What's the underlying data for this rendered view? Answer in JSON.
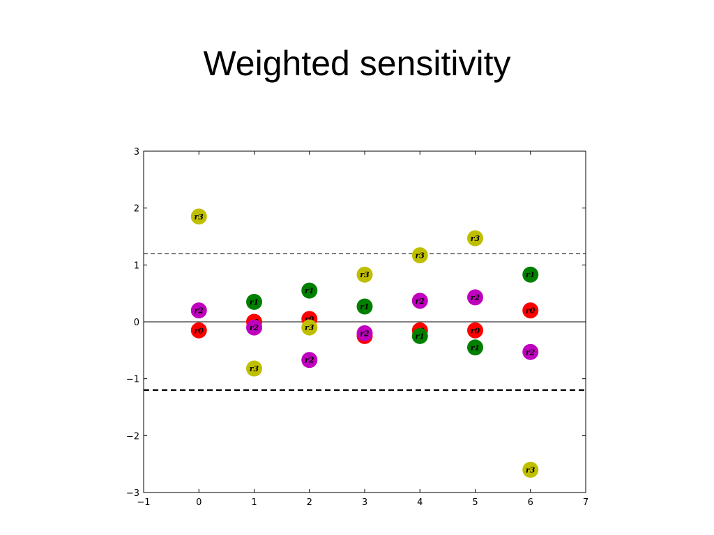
{
  "slide": {
    "title": "Weighted sensitivity"
  },
  "colors": {
    "r0": "#ff0000",
    "r1": "#008000",
    "r2": "#bf00bf",
    "r3": "#bfbf00"
  },
  "chart_data": {
    "type": "scatter",
    "title": "",
    "xlabel": "",
    "ylabel": "",
    "xlim": [
      -1,
      7
    ],
    "ylim": [
      -3,
      3
    ],
    "xticks": [
      -1,
      0,
      1,
      2,
      3,
      4,
      5,
      6,
      7
    ],
    "yticks": [
      -3,
      -2,
      -1,
      0,
      1,
      2,
      3
    ],
    "x_tick_labels": [
      "−1",
      "0",
      "1",
      "2",
      "3",
      "4",
      "5",
      "6",
      "7"
    ],
    "y_tick_labels": [
      "−3",
      "−2",
      "−1",
      "0",
      "1",
      "2",
      "3"
    ],
    "grid": false,
    "reference_lines": [
      {
        "y": 0,
        "style": "solid"
      },
      {
        "y": 1.2,
        "style": "dashed-thin"
      },
      {
        "y": -1.2,
        "style": "dashed-thick"
      }
    ],
    "series": [
      {
        "name": "r0",
        "color_key": "r0",
        "x": [
          0,
          1,
          2,
          3,
          4,
          5,
          6
        ],
        "y": [
          -0.15,
          0.0,
          0.05,
          -0.25,
          -0.15,
          -0.15,
          0.2
        ]
      },
      {
        "name": "r1",
        "color_key": "r1",
        "x": [
          1,
          2,
          3,
          4,
          5,
          6
        ],
        "y": [
          0.35,
          0.55,
          0.27,
          -0.25,
          -0.45,
          0.83
        ]
      },
      {
        "name": "r2",
        "color_key": "r2",
        "x": [
          0,
          1,
          2,
          3,
          4,
          5,
          6
        ],
        "y": [
          0.2,
          -0.1,
          -0.67,
          -0.2,
          0.37,
          0.43,
          -0.53
        ]
      },
      {
        "name": "r3",
        "color_key": "r3",
        "x": [
          0,
          1,
          2,
          3,
          4,
          5,
          6
        ],
        "y": [
          1.85,
          -0.82,
          -0.1,
          0.83,
          1.17,
          1.47,
          -2.6
        ]
      }
    ]
  }
}
